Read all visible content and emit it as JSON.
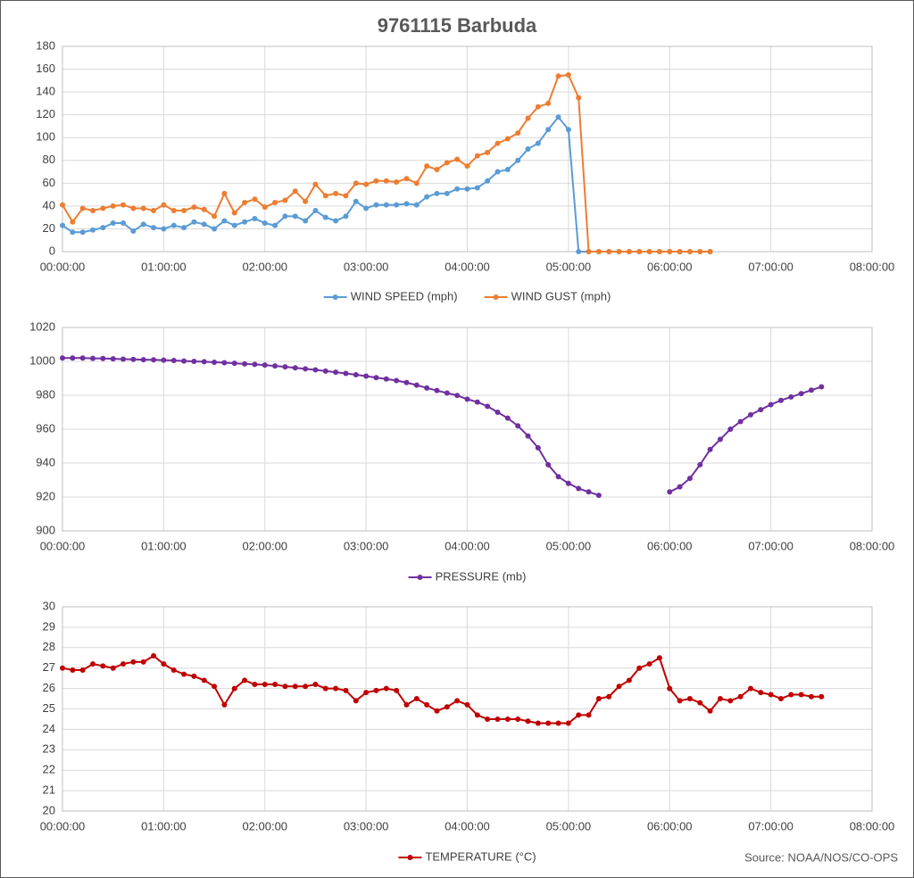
{
  "title": "9761115 Barbuda",
  "source": "Source: NOAA/NOS/CO-OPS",
  "chart_data": [
    {
      "type": "line",
      "x": [
        0,
        0.1,
        0.2,
        0.3,
        0.4,
        0.5,
        0.6,
        0.7,
        0.8,
        0.9,
        1.0,
        1.1,
        1.2,
        1.3,
        1.4,
        1.5,
        1.6,
        1.7,
        1.8,
        1.9,
        2.0,
        2.1,
        2.2,
        2.3,
        2.4,
        2.5,
        2.6,
        2.7,
        2.8,
        2.9,
        3.0,
        3.1,
        3.2,
        3.3,
        3.4,
        3.5,
        3.6,
        3.7,
        3.8,
        3.9,
        4.0,
        4.1,
        4.2,
        4.3,
        4.4,
        4.5,
        4.6,
        4.7,
        4.8,
        4.9,
        5.0,
        5.1,
        5.2,
        5.3,
        5.4,
        5.5,
        5.6,
        5.7,
        5.8,
        5.9,
        6.0,
        6.1,
        6.2,
        6.3,
        6.4
      ],
      "series": [
        {
          "name": "WIND SPEED (mph)",
          "color": "#5b9bd5",
          "values": [
            23,
            17,
            17,
            19,
            21,
            25,
            25,
            18,
            24,
            21,
            20,
            23,
            21,
            26,
            24,
            20,
            27,
            23,
            26,
            29,
            25,
            23,
            31,
            31,
            27,
            36,
            30,
            27,
            31,
            44,
            38,
            41,
            41,
            41,
            42,
            41,
            48,
            51,
            51,
            55,
            55,
            56,
            62,
            70,
            72,
            80,
            90,
            95,
            107,
            118,
            107,
            0,
            0,
            0,
            0,
            0,
            0,
            0,
            0,
            0,
            0,
            0,
            0,
            0,
            0
          ]
        },
        {
          "name": "WIND GUST (mph)",
          "color": "#ed7d31",
          "values": [
            41,
            26,
            38,
            36,
            38,
            40,
            41,
            38,
            38,
            36,
            41,
            36,
            36,
            39,
            37,
            31,
            51,
            34,
            43,
            46,
            39,
            43,
            45,
            53,
            44,
            59,
            49,
            51,
            49,
            60,
            59,
            62,
            62,
            61,
            64,
            60,
            75,
            72,
            78,
            81,
            75,
            84,
            87,
            95,
            99,
            104,
            117,
            127,
            130,
            154,
            155,
            135,
            0,
            0,
            0,
            0,
            0,
            0,
            0,
            0,
            0,
            0,
            0,
            0,
            0
          ]
        }
      ],
      "xlim": [
        0,
        8
      ],
      "xticks": [
        {
          "value": 0,
          "label": "00:00:00"
        },
        {
          "value": 1,
          "label": "01:00:00"
        },
        {
          "value": 2,
          "label": "02:00:00"
        },
        {
          "value": 3,
          "label": "03:00:00"
        },
        {
          "value": 4,
          "label": "04:00:00"
        },
        {
          "value": 5,
          "label": "05:00:00"
        },
        {
          "value": 6,
          "label": "06:00:00"
        },
        {
          "value": 7,
          "label": "07:00:00"
        },
        {
          "value": 8,
          "label": "08:00:00"
        }
      ],
      "ylim": [
        0,
        180
      ],
      "yticks": [
        0,
        20,
        40,
        60,
        80,
        100,
        120,
        140,
        160,
        180
      ],
      "grid": true,
      "legend": "bottom"
    },
    {
      "type": "line",
      "x": [
        0,
        0.1,
        0.2,
        0.3,
        0.4,
        0.5,
        0.6,
        0.7,
        0.8,
        0.9,
        1.0,
        1.1,
        1.2,
        1.3,
        1.4,
        1.5,
        1.6,
        1.7,
        1.8,
        1.9,
        2.0,
        2.1,
        2.2,
        2.3,
        2.4,
        2.5,
        2.6,
        2.7,
        2.8,
        2.9,
        3.0,
        3.1,
        3.2,
        3.3,
        3.4,
        3.5,
        3.6,
        3.7,
        3.8,
        3.9,
        4.0,
        4.1,
        4.2,
        4.3,
        4.4,
        4.5,
        4.6,
        4.7,
        4.8,
        4.9,
        5.0,
        5.1,
        5.2,
        5.3,
        5.4,
        5.5,
        5.6,
        5.7,
        5.8,
        5.9,
        6.0,
        6.1,
        6.2,
        6.3,
        6.4,
        6.5,
        6.6,
        6.7,
        6.8,
        6.9,
        7.0,
        7.1,
        7.2,
        7.3,
        7.4,
        7.5
      ],
      "series": [
        {
          "name": "PRESSURE (mb)",
          "color": "#7030a0",
          "values": [
            1002,
            1002,
            1002,
            1001.8,
            1001.7,
            1001.5,
            1001.3,
            1001.2,
            1001,
            1000.9,
            1000.7,
            1000.5,
            1000.2,
            1000,
            999.8,
            999.5,
            999.2,
            998.9,
            998.5,
            998.2,
            997.8,
            997.3,
            996.8,
            996.2,
            995.6,
            995,
            994.3,
            993.6,
            992.9,
            992.1,
            991.3,
            990.4,
            989.6,
            988.7,
            987.5,
            986,
            984.3,
            982.8,
            981.3,
            979.9,
            977.7,
            976,
            973.5,
            970,
            966.5,
            962,
            956,
            949,
            939,
            932,
            928,
            925,
            923,
            921,
            null,
            null,
            null,
            null,
            null,
            null,
            923,
            926,
            931,
            939,
            948,
            954,
            960,
            964.5,
            968.5,
            971.5,
            974.5,
            977,
            979,
            981,
            983,
            985
          ]
        }
      ],
      "xlim": [
        0,
        8
      ],
      "xticks": [
        {
          "value": 0,
          "label": "00:00:00"
        },
        {
          "value": 1,
          "label": "01:00:00"
        },
        {
          "value": 2,
          "label": "02:00:00"
        },
        {
          "value": 3,
          "label": "03:00:00"
        },
        {
          "value": 4,
          "label": "04:00:00"
        },
        {
          "value": 5,
          "label": "05:00:00"
        },
        {
          "value": 6,
          "label": "06:00:00"
        },
        {
          "value": 7,
          "label": "07:00:00"
        },
        {
          "value": 8,
          "label": "08:00:00"
        }
      ],
      "ylim": [
        900,
        1020
      ],
      "yticks": [
        900,
        920,
        940,
        960,
        980,
        1000,
        1020
      ],
      "grid": true,
      "legend": "bottom"
    },
    {
      "type": "line",
      "x": [
        0,
        0.1,
        0.2,
        0.3,
        0.4,
        0.5,
        0.6,
        0.7,
        0.8,
        0.9,
        1.0,
        1.1,
        1.2,
        1.3,
        1.4,
        1.5,
        1.6,
        1.7,
        1.8,
        1.9,
        2.0,
        2.1,
        2.2,
        2.3,
        2.4,
        2.5,
        2.6,
        2.7,
        2.8,
        2.9,
        3.0,
        3.1,
        3.2,
        3.3,
        3.4,
        3.5,
        3.6,
        3.7,
        3.8,
        3.9,
        4.0,
        4.1,
        4.2,
        4.3,
        4.4,
        4.5,
        4.6,
        4.7,
        4.8,
        4.9,
        5.0,
        5.1,
        5.2,
        5.3,
        5.4,
        5.5,
        5.6,
        5.7,
        5.8,
        5.9,
        6.0,
        6.1,
        6.2,
        6.3,
        6.4,
        6.5,
        6.6,
        6.7,
        6.8,
        6.9,
        7.0,
        7.1,
        7.2,
        7.3,
        7.4,
        7.5
      ],
      "series": [
        {
          "name": "TEMPERATURE (°C)",
          "color": "#c00000",
          "values": [
            27.0,
            26.9,
            26.9,
            27.2,
            27.1,
            27.0,
            27.2,
            27.3,
            27.3,
            27.6,
            27.2,
            26.9,
            26.7,
            26.6,
            26.4,
            26.1,
            25.2,
            26.0,
            26.4,
            26.2,
            26.2,
            26.2,
            26.1,
            26.1,
            26.1,
            26.2,
            26.0,
            26.0,
            25.9,
            25.4,
            25.8,
            25.9,
            26.0,
            25.9,
            25.2,
            25.5,
            25.2,
            24.9,
            25.1,
            25.4,
            25.2,
            24.7,
            24.5,
            24.5,
            24.5,
            24.5,
            24.4,
            24.3,
            24.3,
            24.3,
            24.3,
            24.7,
            24.7,
            25.5,
            25.6,
            26.1,
            26.4,
            27.0,
            27.2,
            27.5,
            26.0,
            25.4,
            25.5,
            25.3,
            24.9,
            25.5,
            25.4,
            25.6,
            26.0,
            25.8,
            25.7,
            25.5,
            25.7,
            25.7,
            25.6,
            25.6
          ]
        }
      ],
      "xlim": [
        0,
        8
      ],
      "xticks": [
        {
          "value": 0,
          "label": "00:00:00"
        },
        {
          "value": 1,
          "label": "01:00:00"
        },
        {
          "value": 2,
          "label": "02:00:00"
        },
        {
          "value": 3,
          "label": "03:00:00"
        },
        {
          "value": 4,
          "label": "04:00:00"
        },
        {
          "value": 5,
          "label": "05:00:00"
        },
        {
          "value": 6,
          "label": "06:00:00"
        },
        {
          "value": 7,
          "label": "07:00:00"
        },
        {
          "value": 8,
          "label": "08:00:00"
        }
      ],
      "ylim": [
        20,
        30
      ],
      "yticks": [
        20,
        21,
        22,
        23,
        24,
        25,
        26,
        27,
        28,
        29,
        30
      ],
      "grid": true,
      "legend": "bottom"
    }
  ]
}
